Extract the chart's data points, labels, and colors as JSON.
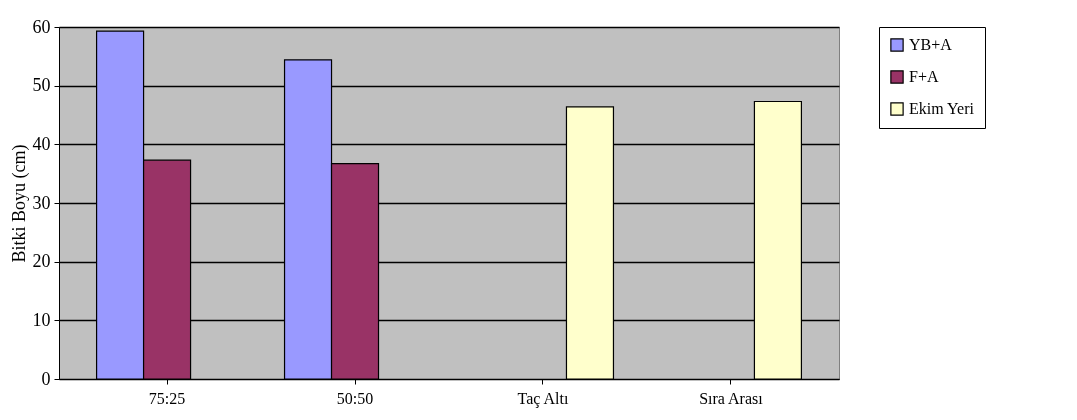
{
  "chart_data": {
    "type": "bar",
    "ylabel": "Bitki Boyu (cm)",
    "categories": [
      "75:25",
      "50:50",
      "Taç Altı",
      "Sıra Arası"
    ],
    "series": [
      {
        "name": "YB+A",
        "color": "#9999ff",
        "values": [
          59.3,
          54.4,
          null,
          null
        ]
      },
      {
        "name": "F+A",
        "color": "#993366",
        "values": [
          37.3,
          36.7,
          null,
          null
        ]
      },
      {
        "name": "Ekim Yeri",
        "color": "#ffffcc",
        "values": [
          null,
          null,
          46.4,
          47.3
        ]
      }
    ],
    "ylim": [
      0,
      60
    ],
    "yticks": [
      0,
      10,
      20,
      30,
      40,
      50,
      60
    ],
    "grid": "y",
    "legend": "right"
  }
}
